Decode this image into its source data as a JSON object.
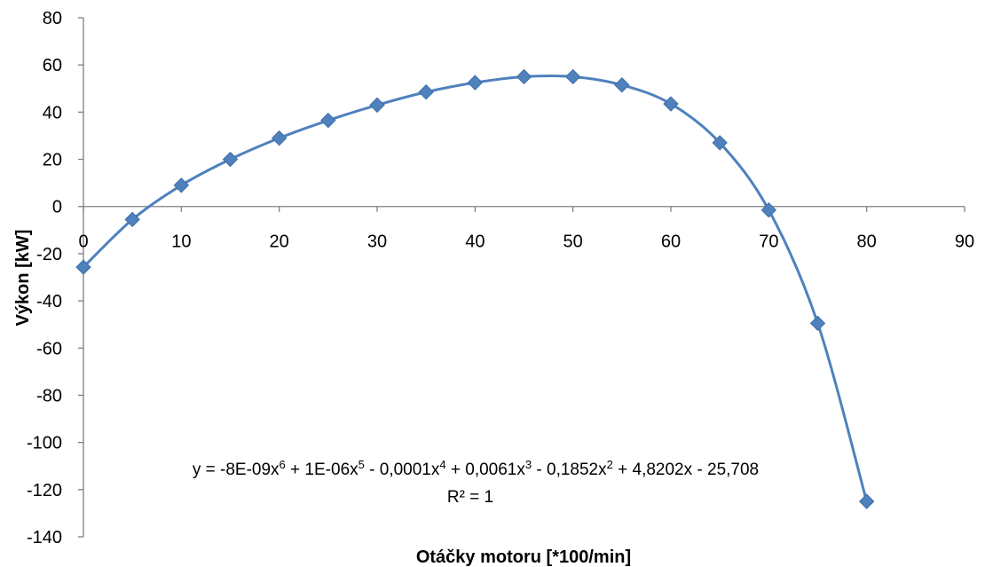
{
  "chart_data": {
    "type": "scatter",
    "xlabel": "Otáčky motoru [*100/min]",
    "ylabel": "Výkon [kW]",
    "xlim": [
      0,
      90
    ],
    "ylim": [
      -140,
      80
    ],
    "x_ticks": [
      "0",
      "10",
      "20",
      "30",
      "40",
      "50",
      "60",
      "70",
      "80",
      "90"
    ],
    "y_ticks": [
      "80",
      "60",
      "40",
      "20",
      "0",
      "-20",
      "-40",
      "-60",
      "-80",
      "-100",
      "-120",
      "-140"
    ],
    "grid": false,
    "legend": "none",
    "series": [
      {
        "x": [
          0,
          5,
          10,
          15,
          20,
          25,
          30,
          35,
          40,
          45,
          50,
          55,
          60,
          65,
          70,
          75,
          80
        ],
        "y": [
          -25.7,
          -5.5,
          9,
          20,
          29,
          36.5,
          43,
          48.5,
          52.5,
          55,
          55,
          51.5,
          43.5,
          27,
          -1.5,
          -49.5,
          -125
        ]
      }
    ],
    "trendline": {
      "type": "polynomial",
      "order": 6,
      "coefficients": [
        -25.708,
        4.8202,
        -0.1852,
        0.0061,
        -0.0001,
        1e-06,
        -8e-09
      ],
      "equation_parts": [
        "y = -8E-09x",
        "6",
        " + 1E-06x",
        "5",
        " - 0,0001x",
        "4",
        " + 0,0061x",
        "3",
        " - 0,1852x",
        "2",
        " + 4,8202x - 25,708"
      ],
      "r2_label": "R² = 1"
    },
    "colors": {
      "series": "#4F81BD",
      "axis": "#808080"
    }
  }
}
